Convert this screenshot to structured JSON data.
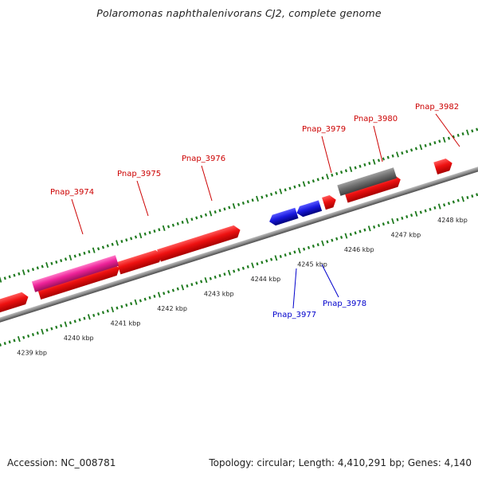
{
  "title": "Polaromonas naphthalenivorans CJ2, complete genome",
  "footer": {
    "accession": "Accession: NC_008781",
    "summary": "Topology: circular; Length: 4,410,291 bp; Genes: 4,140"
  },
  "colors": {
    "backbone": "#8a8a8a",
    "tick": "#1e7a1e",
    "forward_gene": "#ee1111",
    "reverse_gene": "#1a1adf",
    "rna_gene": "#ee2299",
    "pseudo_gene": "#6e6e6e",
    "forward_label": "#cc0000",
    "reverse_label": "#0000cc"
  },
  "kbp_labels": [
    {
      "kbp": 4239,
      "text": "4239 kbp"
    },
    {
      "kbp": 4240,
      "text": "4240 kbp"
    },
    {
      "kbp": 4241,
      "text": "4241 kbp"
    },
    {
      "kbp": 4242,
      "text": "4242 kbp"
    },
    {
      "kbp": 4243,
      "text": "4243 kbp"
    },
    {
      "kbp": 4244,
      "text": "4244 kbp"
    },
    {
      "kbp": 4245,
      "text": "4245 kbp"
    },
    {
      "kbp": 4246,
      "text": "4246 kbp"
    },
    {
      "kbp": 4247,
      "text": "4247 kbp"
    },
    {
      "kbp": 4248,
      "text": "4248 kbp"
    }
  ],
  "gene_labels": [
    {
      "text": "Pnap_3974",
      "strand": "forward"
    },
    {
      "text": "Pnap_3975",
      "strand": "forward"
    },
    {
      "text": "Pnap_3976",
      "strand": "forward"
    },
    {
      "text": "Pnap_3979",
      "strand": "forward"
    },
    {
      "text": "Pnap_3980",
      "strand": "forward"
    },
    {
      "text": "Pnap_3982",
      "strand": "forward"
    },
    {
      "text": "Pnap_3977",
      "strand": "reverse"
    },
    {
      "text": "Pnap_3978",
      "strand": "reverse"
    }
  ]
}
